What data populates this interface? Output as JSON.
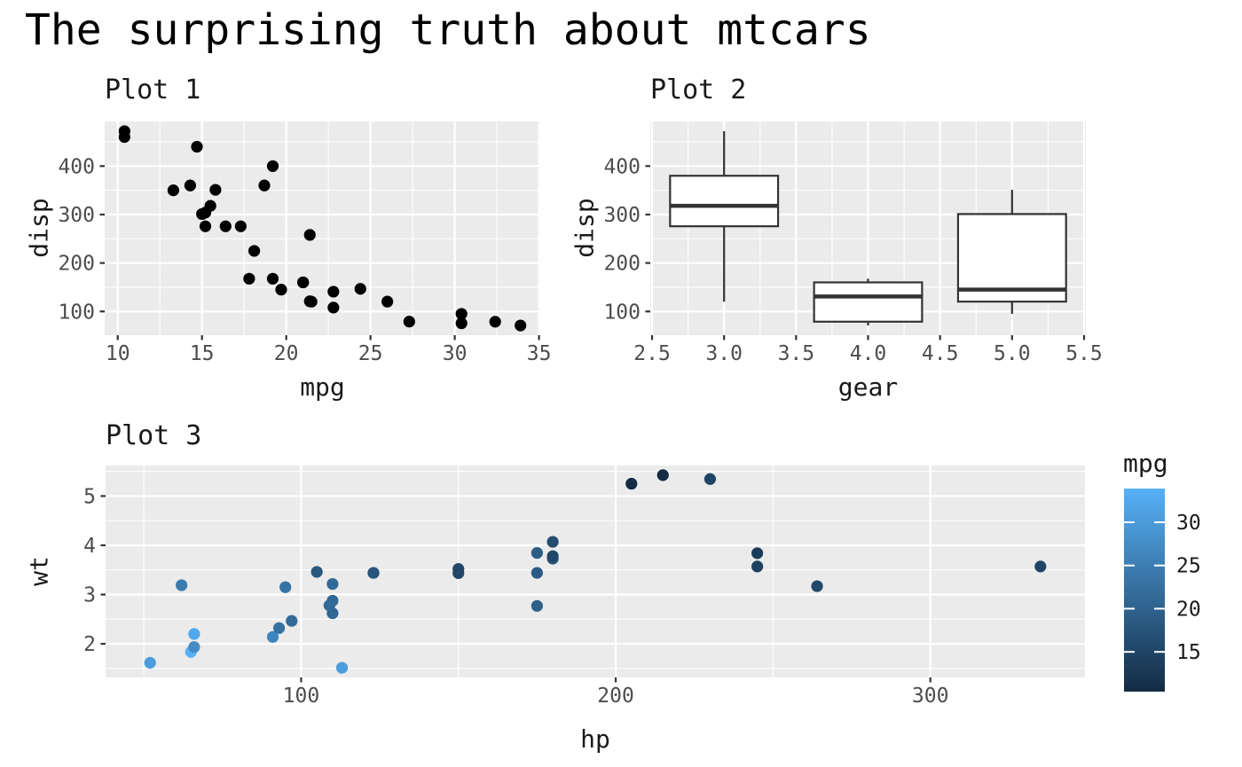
{
  "figure": {
    "title": "The surprising truth about mtcars"
  },
  "style": {
    "panel_bg": "#EBEBEB",
    "grid_color": "#FFFFFF",
    "tick_color": "#333333",
    "tick_label_color": "#4D4D4D",
    "text_color": "#1a1a1a",
    "point_color_plot1": "#000000",
    "box_stroke": "#333333",
    "box_fill": "#FFFFFF",
    "gradient_low": "#132B43",
    "gradient_high": "#56B1F7"
  },
  "chart_data": [
    {
      "id": "plot1",
      "type": "scatter",
      "title": "Plot 1",
      "xlabel": "mpg",
      "ylabel": "disp",
      "xlim": [
        9.225,
        35.075
      ],
      "ylim": [
        51.055,
        492.045
      ],
      "xticks": [
        10,
        15,
        20,
        25,
        30,
        35
      ],
      "yticks": [
        100,
        200,
        300,
        400
      ],
      "grid": true,
      "x": [
        21,
        21,
        22.8,
        21.4,
        18.7,
        18.1,
        14.3,
        24.4,
        22.8,
        19.2,
        17.8,
        16.4,
        17.3,
        15.2,
        10.4,
        10.4,
        14.7,
        32.4,
        30.4,
        33.9,
        21.5,
        15.5,
        15.2,
        13.3,
        19.2,
        27.3,
        26,
        30.4,
        15.8,
        19.7,
        15,
        21.4
      ],
      "y": [
        160,
        160,
        108,
        258,
        360,
        225,
        360,
        146.7,
        140.8,
        167.6,
        167.6,
        275.8,
        275.8,
        275.8,
        472,
        460,
        440,
        78.7,
        75.7,
        71.1,
        120.1,
        318,
        304,
        350,
        400,
        79,
        120.3,
        95.1,
        351,
        145,
        301,
        121
      ]
    },
    {
      "id": "plot2",
      "type": "boxplot",
      "title": "Plot 2",
      "xlabel": "gear",
      "ylabel": "disp",
      "xlim": [
        2.4875,
        5.5125
      ],
      "ylim": [
        51.055,
        492.045
      ],
      "xticks": [
        2.5,
        3.0,
        3.5,
        4.0,
        4.5,
        5.0,
        5.5
      ],
      "yticks": [
        100,
        200,
        300,
        400
      ],
      "grid": true,
      "box_halfwidth": 0.375,
      "boxes": [
        {
          "x": 3,
          "whisker_min": 120.1,
          "q1": 275.8,
          "median": 318,
          "q3": 380,
          "whisker_max": 472
        },
        {
          "x": 4,
          "whisker_min": 71.1,
          "q1": 78.9,
          "median": 130.9,
          "q3": 160,
          "whisker_max": 167.6
        },
        {
          "x": 5,
          "whisker_min": 95.1,
          "q1": 120.3,
          "median": 145,
          "q3": 301,
          "whisker_max": 351
        }
      ]
    },
    {
      "id": "plot3",
      "type": "scatter",
      "title": "Plot 3",
      "xlabel": "hp",
      "ylabel": "wt",
      "xlim": [
        37.85,
        349.15
      ],
      "ylim": [
        1.3174,
        5.6196
      ],
      "xticks": [
        100,
        200,
        300
      ],
      "yticks": [
        2,
        3,
        4,
        5
      ],
      "grid": true,
      "x": [
        110,
        110,
        93,
        110,
        175,
        105,
        245,
        62,
        95,
        123,
        123,
        180,
        180,
        180,
        205,
        215,
        230,
        66,
        52,
        65,
        97,
        150,
        150,
        245,
        175,
        66,
        91,
        113,
        264,
        175,
        335,
        109
      ],
      "y": [
        2.62,
        2.875,
        2.32,
        3.215,
        3.44,
        3.46,
        3.57,
        3.19,
        3.15,
        3.44,
        3.44,
        4.07,
        3.73,
        3.78,
        5.25,
        5.424,
        5.345,
        2.2,
        1.615,
        1.835,
        2.465,
        3.52,
        3.435,
        3.84,
        3.845,
        1.935,
        2.14,
        1.513,
        3.17,
        2.77,
        3.57,
        2.78
      ],
      "color_values": [
        21,
        21,
        22.8,
        21.4,
        18.7,
        18.1,
        14.3,
        24.4,
        22.8,
        19.2,
        17.8,
        16.4,
        17.3,
        15.2,
        10.4,
        10.4,
        14.7,
        32.4,
        30.4,
        33.9,
        21.5,
        15.5,
        15.2,
        13.3,
        19.2,
        27.3,
        26,
        30.4,
        15.8,
        19.7,
        15,
        21.4
      ],
      "legend": {
        "title": "mpg",
        "position": "right",
        "range": [
          10.4,
          33.9
        ],
        "ticks": [
          15,
          20,
          25,
          30
        ],
        "low": "#132B43",
        "high": "#56B1F7"
      }
    }
  ]
}
